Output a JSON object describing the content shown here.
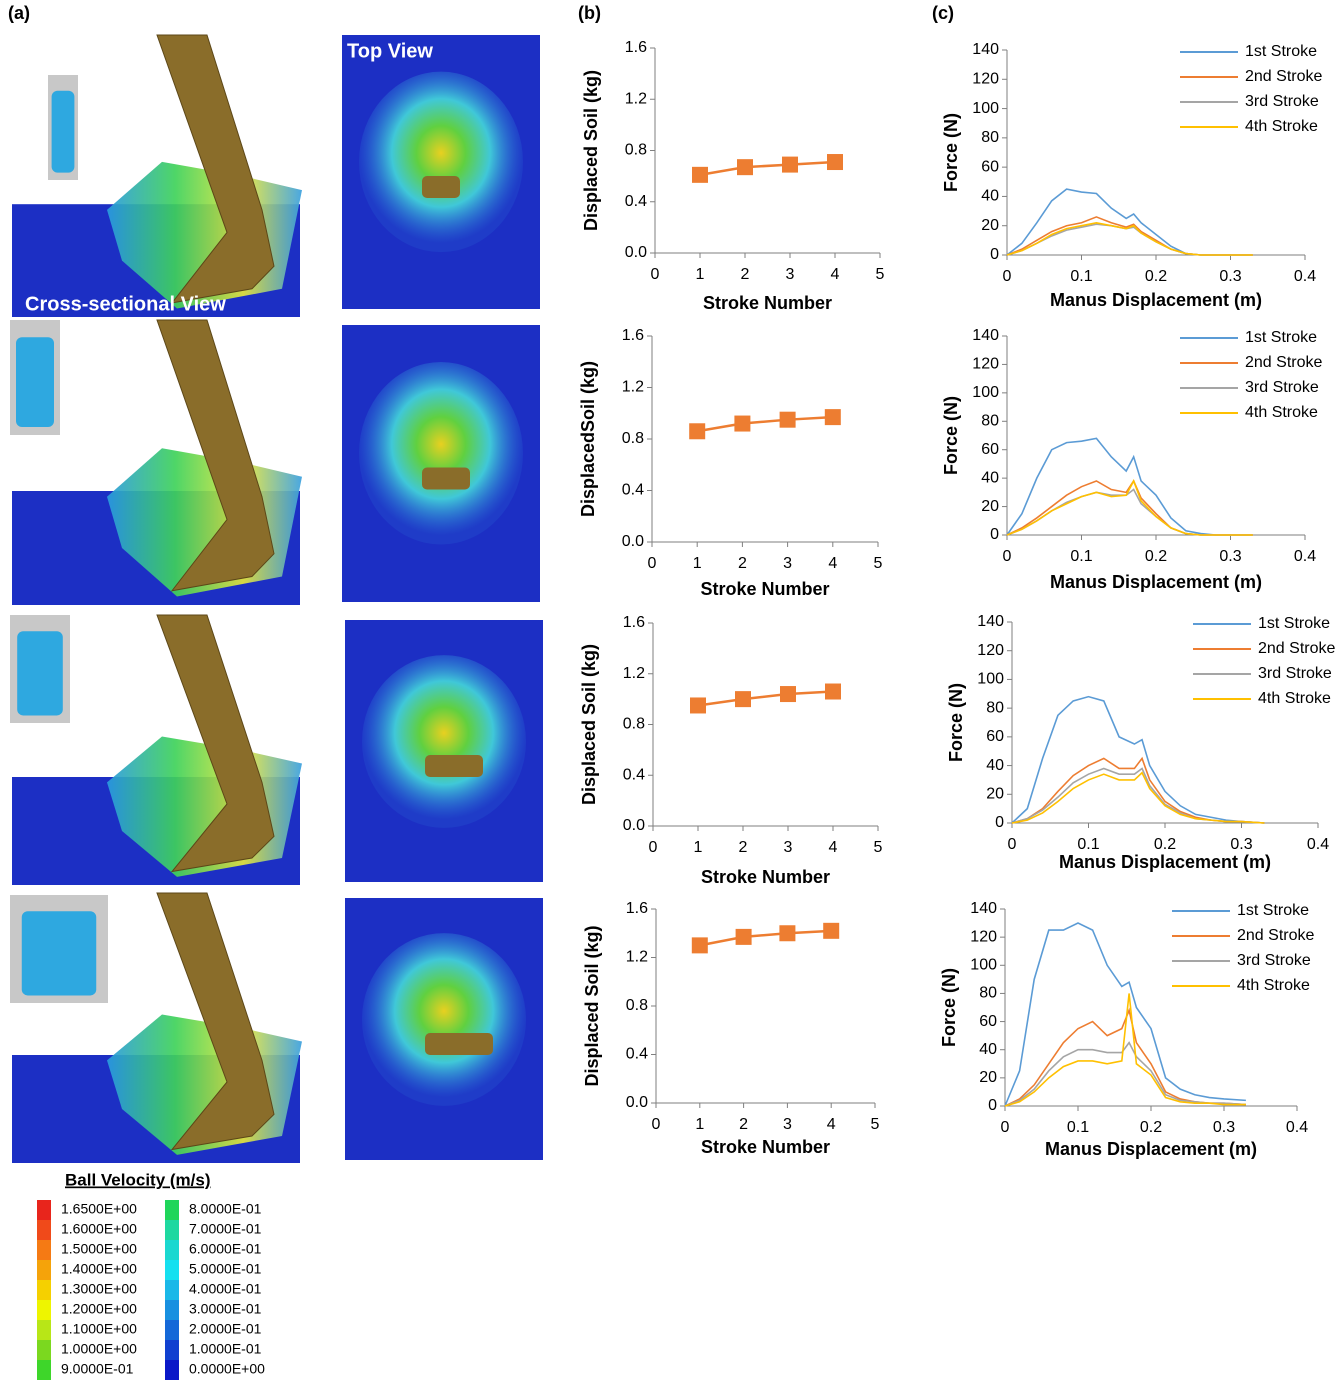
{
  "panel_labels": [
    "(a)",
    "(b)",
    "(c)"
  ],
  "views": {
    "cross_section": "Cross-sectional View",
    "top": "Top View"
  },
  "velocity_legend": {
    "title": "Ball Velocity (m/s)",
    "entries": [
      {
        "label": "1.6500E+00",
        "color": "#e8251c"
      },
      {
        "label": "1.6000E+00",
        "color": "#f04a1a"
      },
      {
        "label": "1.5000E+00",
        "color": "#f57a14"
      },
      {
        "label": "1.4000E+00",
        "color": "#f5a30a"
      },
      {
        "label": "1.3000E+00",
        "color": "#f5d000"
      },
      {
        "label": "1.2000E+00",
        "color": "#eef500"
      },
      {
        "label": "1.1000E+00",
        "color": "#b8e617"
      },
      {
        "label": "1.0000E+00",
        "color": "#7bd81f"
      },
      {
        "label": "9.0000E-01",
        "color": "#3ed62a"
      },
      {
        "label": "8.0000E-01",
        "color": "#1fd55a"
      },
      {
        "label": "7.0000E-01",
        "color": "#1ed8a0"
      },
      {
        "label": "6.0000E-01",
        "color": "#1ad8d0"
      },
      {
        "label": "5.0000E-01",
        "color": "#15e0f0"
      },
      {
        "label": "4.0000E-01",
        "color": "#1ab8e8"
      },
      {
        "label": "3.0000E-01",
        "color": "#1890e0"
      },
      {
        "label": "2.0000E-01",
        "color": "#1468d8"
      },
      {
        "label": "1.0000E-01",
        "color": "#1040d0"
      },
      {
        "label": "0.0000E+00",
        "color": "#0a18c8"
      }
    ]
  },
  "chart_data": [
    {
      "type": "line",
      "marker": "square",
      "xlabel": "Stroke Number",
      "ylabel": "Displaced Soil (kg)",
      "x": [
        1,
        2,
        3,
        4
      ],
      "values": [
        0.61,
        0.67,
        0.69,
        0.71
      ],
      "color": "#ed7d31",
      "xlim": [
        0,
        5
      ],
      "xticks": [
        0,
        1,
        2,
        3,
        4,
        5
      ],
      "ylim": [
        0,
        1.6
      ],
      "yticks": [
        {
          "value": 0,
          "label": "0.0"
        },
        {
          "value": 0.4,
          "label": "0.4"
        },
        {
          "value": 0.8,
          "label": "0.8"
        },
        {
          "value": 1.2,
          "label": "1.2"
        },
        {
          "value": 1.6,
          "label": "1.6"
        }
      ]
    },
    {
      "type": "line",
      "marker": "square",
      "xlabel": "Stroke Number",
      "ylabel": "DisplacedSoil (kg)",
      "x": [
        1,
        2,
        3,
        4
      ],
      "values": [
        0.86,
        0.92,
        0.95,
        0.97
      ],
      "color": "#ed7d31",
      "xlim": [
        0,
        5
      ],
      "xticks": [
        0,
        1,
        2,
        3,
        4,
        5
      ],
      "ylim": [
        0,
        1.6
      ],
      "yticks": [
        {
          "value": 0,
          "label": "0.0"
        },
        {
          "value": 0.4,
          "label": "0.4"
        },
        {
          "value": 0.8,
          "label": "0.8"
        },
        {
          "value": 1.2,
          "label": "1.2"
        },
        {
          "value": 1.6,
          "label": "1.6"
        }
      ]
    },
    {
      "type": "line",
      "marker": "square",
      "xlabel": "Stroke Number",
      "ylabel": "Displaced Soil (kg)",
      "x": [
        1,
        2,
        3,
        4
      ],
      "values": [
        0.95,
        1.0,
        1.04,
        1.06
      ],
      "color": "#ed7d31",
      "xlim": [
        0,
        5
      ],
      "xticks": [
        0,
        1,
        2,
        3,
        4,
        5
      ],
      "ylim": [
        0,
        1.6
      ],
      "yticks": [
        {
          "value": 0,
          "label": "0.0"
        },
        {
          "value": 0.4,
          "label": "0.4"
        },
        {
          "value": 0.8,
          "label": "0.8"
        },
        {
          "value": 1.2,
          "label": "1.2"
        },
        {
          "value": 1.6,
          "label": "1.6"
        }
      ]
    },
    {
      "type": "line",
      "marker": "square",
      "xlabel": "Stroke Number",
      "ylabel": "Displaced Soil (kg)",
      "x": [
        1,
        2,
        3,
        4
      ],
      "values": [
        1.3,
        1.37,
        1.4,
        1.42
      ],
      "color": "#ed7d31",
      "xlim": [
        0,
        5
      ],
      "xticks": [
        0,
        1,
        2,
        3,
        4,
        5
      ],
      "ylim": [
        0,
        1.6
      ],
      "yticks": [
        {
          "value": 0,
          "label": "0.0"
        },
        {
          "value": 0.4,
          "label": "0.4"
        },
        {
          "value": 0.8,
          "label": "0.8"
        },
        {
          "value": 1.2,
          "label": "1.2"
        },
        {
          "value": 1.6,
          "label": "1.6"
        }
      ]
    },
    {
      "type": "line",
      "xlabel": "Manus Displacement (m)",
      "ylabel": "Force (N)",
      "legend": "upper right",
      "x": [
        0,
        0.02,
        0.04,
        0.06,
        0.08,
        0.1,
        0.12,
        0.14,
        0.16,
        0.17,
        0.18,
        0.2,
        0.22,
        0.24,
        0.26,
        0.28,
        0.3,
        0.33
      ],
      "series": [
        {
          "name": "1st Stroke",
          "color": "#5b9bd5",
          "values": [
            0,
            8,
            22,
            37,
            45,
            43,
            42,
            32,
            25,
            28,
            22,
            14,
            6,
            1,
            0,
            0,
            0,
            0
          ]
        },
        {
          "name": "2nd Stroke",
          "color": "#ed7d31",
          "values": [
            0,
            4,
            10,
            16,
            20,
            22,
            26,
            22,
            19,
            21,
            16,
            10,
            4,
            1,
            0,
            0,
            0,
            0
          ]
        },
        {
          "name": "3rd Stroke",
          "color": "#a5a5a5",
          "values": [
            0,
            3,
            8,
            13,
            17,
            19,
            21,
            20,
            18,
            19,
            15,
            9,
            4,
            1,
            0,
            0,
            0,
            0
          ]
        },
        {
          "name": "4th Stroke",
          "color": "#ffc000",
          "values": [
            0,
            3,
            8,
            14,
            18,
            20,
            22,
            20,
            18,
            20,
            15,
            9,
            4,
            1,
            0,
            0,
            0,
            0
          ]
        }
      ],
      "xlim": [
        0,
        0.4
      ],
      "xticks": [
        0,
        0.1,
        0.2,
        0.3,
        0.4
      ],
      "ylim": [
        0,
        140
      ],
      "yticks": [
        0,
        20,
        40,
        60,
        80,
        100,
        120,
        140
      ]
    },
    {
      "type": "line",
      "xlabel": "Manus Displacement (m)",
      "ylabel": "Force (N)",
      "legend": "upper right",
      "x": [
        0,
        0.02,
        0.04,
        0.06,
        0.08,
        0.1,
        0.12,
        0.14,
        0.16,
        0.17,
        0.18,
        0.2,
        0.22,
        0.24,
        0.26,
        0.28,
        0.3,
        0.33
      ],
      "series": [
        {
          "name": "1st Stroke",
          "color": "#5b9bd5",
          "values": [
            0,
            15,
            40,
            60,
            65,
            66,
            68,
            55,
            45,
            55,
            38,
            28,
            12,
            3,
            1,
            0,
            0,
            0
          ]
        },
        {
          "name": "2nd Stroke",
          "color": "#ed7d31",
          "values": [
            0,
            5,
            12,
            20,
            28,
            34,
            38,
            32,
            30,
            38,
            26,
            15,
            5,
            1,
            0,
            0,
            0,
            0
          ]
        },
        {
          "name": "3rd Stroke",
          "color": "#a5a5a5",
          "values": [
            0,
            4,
            10,
            17,
            23,
            27,
            30,
            28,
            28,
            32,
            22,
            13,
            5,
            1,
            0,
            0,
            0,
            0
          ]
        },
        {
          "name": "4th Stroke",
          "color": "#ffc000",
          "values": [
            0,
            4,
            10,
            17,
            22,
            27,
            30,
            27,
            28,
            38,
            24,
            13,
            5,
            1,
            0,
            0,
            0,
            0
          ]
        }
      ],
      "xlim": [
        0,
        0.4
      ],
      "xticks": [
        0,
        0.1,
        0.2,
        0.3,
        0.4
      ],
      "ylim": [
        0,
        140
      ],
      "yticks": [
        0,
        20,
        40,
        60,
        80,
        100,
        120,
        140
      ]
    },
    {
      "type": "line",
      "xlabel": "Manus Displacement (m)",
      "ylabel": "Force (N)",
      "legend": "upper right",
      "x": [
        0,
        0.02,
        0.04,
        0.06,
        0.08,
        0.1,
        0.12,
        0.14,
        0.16,
        0.17,
        0.18,
        0.2,
        0.22,
        0.24,
        0.26,
        0.28,
        0.3,
        0.33
      ],
      "series": [
        {
          "name": "1st Stroke",
          "color": "#5b9bd5",
          "values": [
            0,
            10,
            45,
            75,
            85,
            88,
            85,
            60,
            55,
            58,
            40,
            22,
            12,
            6,
            4,
            2,
            1,
            0
          ]
        },
        {
          "name": "2nd Stroke",
          "color": "#ed7d31",
          "values": [
            0,
            3,
            10,
            22,
            33,
            40,
            45,
            38,
            38,
            45,
            30,
            15,
            8,
            4,
            2,
            1,
            1,
            0
          ]
        },
        {
          "name": "3rd Stroke",
          "color": "#a5a5a5",
          "values": [
            0,
            3,
            9,
            18,
            28,
            34,
            38,
            34,
            34,
            38,
            26,
            13,
            7,
            3,
            2,
            1,
            1,
            0
          ]
        },
        {
          "name": "4th Stroke",
          "color": "#ffc000",
          "values": [
            0,
            2,
            7,
            15,
            24,
            30,
            34,
            30,
            30,
            35,
            24,
            12,
            6,
            3,
            2,
            1,
            1,
            0
          ]
        }
      ],
      "xlim": [
        0,
        0.4
      ],
      "xticks": [
        0,
        0.1,
        0.2,
        0.3,
        0.4
      ],
      "ylim": [
        0,
        140
      ],
      "yticks": [
        0,
        20,
        40,
        60,
        80,
        100,
        120,
        140
      ]
    },
    {
      "type": "line",
      "xlabel": "Manus Displacement (m)",
      "ylabel": "Force (N)",
      "legend": "upper right",
      "x": [
        0,
        0.02,
        0.04,
        0.06,
        0.08,
        0.1,
        0.12,
        0.14,
        0.16,
        0.17,
        0.18,
        0.2,
        0.22,
        0.24,
        0.26,
        0.28,
        0.3,
        0.33
      ],
      "series": [
        {
          "name": "1st Stroke",
          "color": "#5b9bd5",
          "values": [
            0,
            25,
            90,
            125,
            125,
            130,
            125,
            100,
            85,
            88,
            70,
            55,
            20,
            12,
            8,
            6,
            5,
            4
          ]
        },
        {
          "name": "2nd Stroke",
          "color": "#ed7d31",
          "values": [
            0,
            5,
            15,
            30,
            45,
            55,
            60,
            50,
            55,
            68,
            45,
            30,
            10,
            5,
            3,
            2,
            2,
            1
          ]
        },
        {
          "name": "3rd Stroke",
          "color": "#a5a5a5",
          "values": [
            0,
            4,
            12,
            25,
            35,
            40,
            40,
            38,
            38,
            45,
            35,
            25,
            8,
            4,
            3,
            2,
            2,
            1
          ]
        },
        {
          "name": "4th Stroke",
          "color": "#ffc000",
          "values": [
            0,
            3,
            10,
            20,
            28,
            32,
            32,
            30,
            32,
            80,
            30,
            22,
            6,
            3,
            2,
            2,
            1,
            1
          ]
        }
      ],
      "xlim": [
        0,
        0.4
      ],
      "xticks": [
        0,
        0.1,
        0.2,
        0.3,
        0.4
      ],
      "ylim": [
        0,
        140
      ],
      "yticks": [
        0,
        20,
        40,
        60,
        80,
        100,
        120,
        140
      ]
    }
  ]
}
